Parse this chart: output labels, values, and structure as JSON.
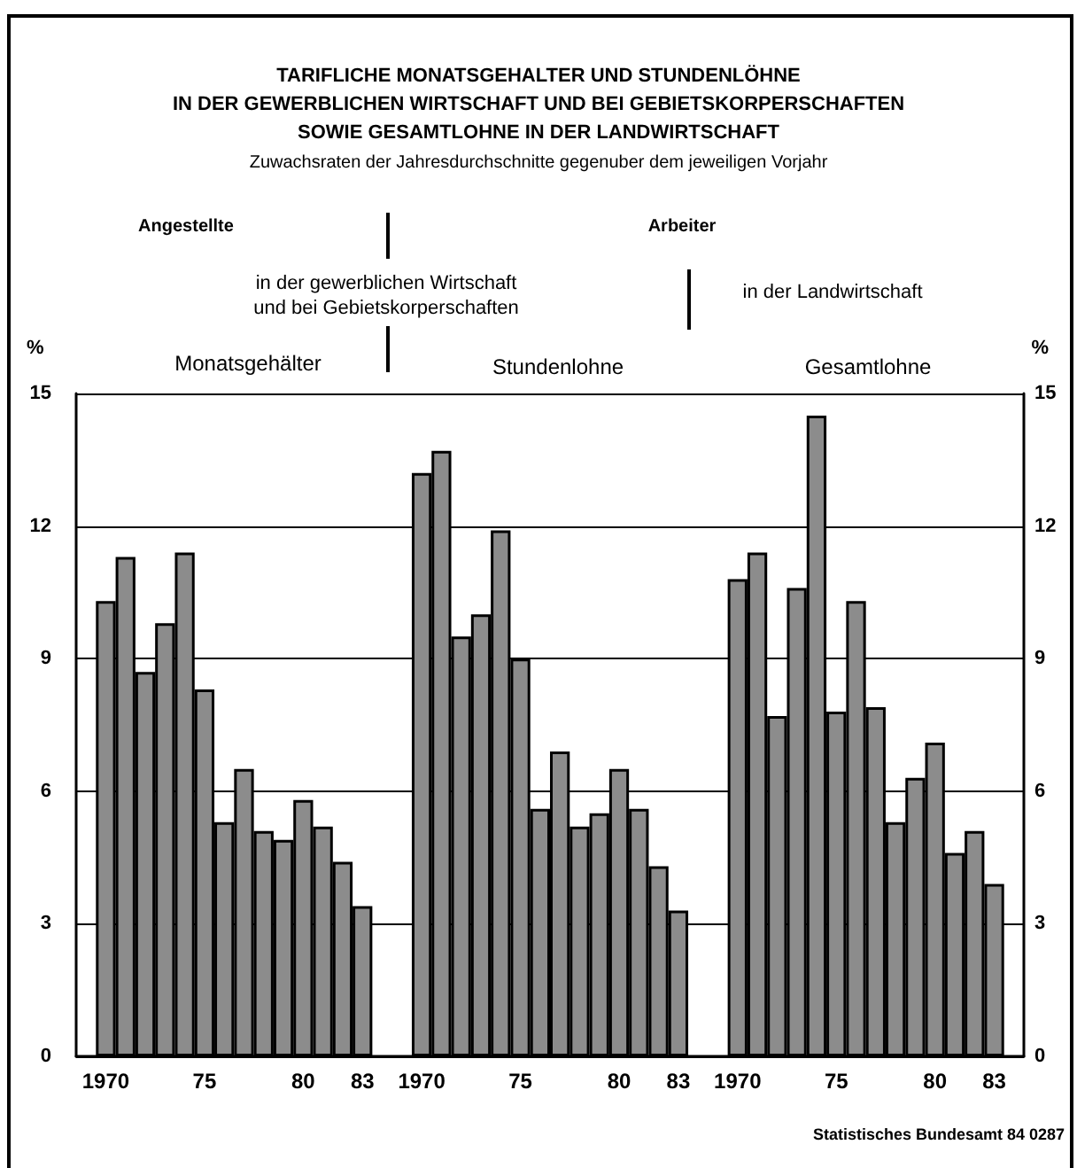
{
  "chart_data": {
    "type": "bar",
    "title": "TARIFLICHE MONATSGEHALTER UND STUNDENLÖHNE\nIN DER GEWERBLICHEN WIRTSCHAFT UND BEI GEBIETSKORPERSCHAFTEN\nSOWIE GESAMTLOHNE IN DER LANDWIRTSCHAFT",
    "subtitle": "Zuwachsraten der Jahresdurchschnitte gegenuber dem jeweiligen Vorjahr",
    "categories": [
      null,
      "1970",
      null,
      null,
      null,
      null,
      "75",
      null,
      null,
      null,
      null,
      "80",
      null,
      null,
      "83",
      null,
      null,
      "1970",
      null,
      null,
      null,
      null,
      "75",
      null,
      null,
      null,
      null,
      "80",
      null,
      null,
      "83",
      null,
      null,
      "1970",
      null,
      null,
      null,
      null,
      "75",
      null,
      null,
      null,
      null,
      "80",
      null,
      null,
      "83",
      null
    ],
    "series": [
      {
        "color": "#8c8c8c",
        "values": [
          null,
          10.3,
          11.3,
          8.7,
          9.8,
          11.4,
          8.3,
          5.3,
          6.5,
          5.1,
          4.9,
          5.8,
          5.2,
          4.4,
          3.4,
          null,
          null,
          13.2,
          13.7,
          9.5,
          10.0,
          11.9,
          9.0,
          5.6,
          6.9,
          5.2,
          5.5,
          6.5,
          5.6,
          4.3,
          3.3,
          null,
          null,
          10.8,
          11.4,
          7.7,
          10.6,
          14.5,
          7.8,
          10.3,
          7.9,
          5.3,
          6.3,
          7.1,
          4.6,
          5.1,
          3.9,
          null
        ]
      }
    ],
    "ylabel": "%",
    "y2label": "%",
    "ylim": [
      0,
      15
    ],
    "yticks": [
      0,
      3,
      6,
      9,
      12,
      15
    ],
    "y2lim": [
      0,
      15
    ],
    "y2ticks": [
      0,
      3,
      6,
      9,
      12,
      15
    ],
    "grid": "y",
    "annotations": [
      "Angestellte",
      "Arbeiter",
      "in der gewerblichen Wirtschaft\nund bei Gebietskorperschaften",
      "in der Landwirtschaft",
      "Monatsgehälter",
      "Stundenlohne",
      "Gesamtlohne",
      "Statistisches Bundesamt 84 0287"
    ]
  }
}
